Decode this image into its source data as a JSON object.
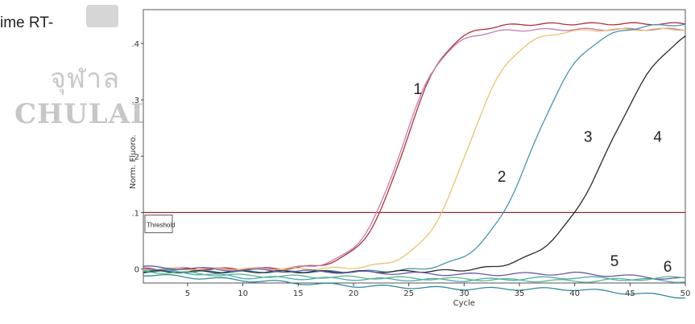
{
  "header": {
    "caption": "ime RT-",
    "watermark_thai": "จุฬาล",
    "watermark_latin": "CHULAL"
  },
  "chart_data": {
    "type": "line",
    "title": "",
    "xlabel": "Cycle",
    "ylabel": "Norm. Fluoro.",
    "xlim": [
      1,
      50
    ],
    "ylim": [
      -0.025,
      0.46
    ],
    "x_ticks": [
      5,
      10,
      15,
      20,
      25,
      30,
      35,
      40,
      45,
      50
    ],
    "y_ticks": [
      {
        "value": 0,
        "label": "0"
      },
      {
        "value": 0.1,
        "label": ".1"
      },
      {
        "value": 0.2,
        "label": ".2"
      },
      {
        "value": 0.3,
        "label": ".3"
      },
      {
        "value": 0.4,
        "label": ".4"
      }
    ],
    "threshold": {
      "value": 0.1,
      "label": "Threshold",
      "color": "#8b2a2a"
    },
    "grid": false,
    "series": [
      {
        "label": "1",
        "color": "#b0303a",
        "kind": "sigmoid",
        "baseline": 0.0,
        "plateau": 0.435,
        "midpoint": 24.6,
        "slope": 1.85
      },
      {
        "label": "1",
        "color": "#c57bb0",
        "kind": "sigmoid",
        "baseline": 0.0,
        "plateau": 0.425,
        "midpoint": 24.3,
        "slope": 1.85
      },
      {
        "label": "2",
        "color": "#e8c46e",
        "kind": "sigmoid",
        "baseline": 0.0,
        "plateau": 0.425,
        "midpoint": 30.3,
        "slope": 2.0
      },
      {
        "label": "3",
        "color": "#4a93b5",
        "kind": "sigmoid",
        "baseline": -0.005,
        "plateau": 0.435,
        "midpoint": 36.2,
        "slope": 2.3
      },
      {
        "label": "4",
        "color": "#2a2a2a",
        "kind": "sigmoid",
        "baseline": -0.005,
        "plateau": 0.445,
        "midpoint": 43.2,
        "slope": 2.7
      },
      {
        "label": "5",
        "color": "#4fa8b8",
        "kind": "flat",
        "y": [
          [
            1,
            0.0
          ],
          [
            10,
            -0.015
          ],
          [
            20,
            -0.018
          ],
          [
            30,
            -0.02
          ],
          [
            40,
            -0.015
          ],
          [
            50,
            -0.022
          ]
        ]
      },
      {
        "label": "5",
        "color": "#6a5aa8",
        "kind": "flat",
        "y": [
          [
            1,
            0.003
          ],
          [
            10,
            -0.002
          ],
          [
            20,
            -0.006
          ],
          [
            30,
            -0.01
          ],
          [
            40,
            -0.008
          ],
          [
            50,
            -0.018
          ]
        ]
      },
      {
        "label": "6",
        "color": "#5bb88a",
        "kind": "flat",
        "y": [
          [
            1,
            -0.004
          ],
          [
            10,
            -0.012
          ],
          [
            20,
            -0.015
          ],
          [
            30,
            -0.018
          ],
          [
            40,
            -0.022
          ],
          [
            50,
            -0.015
          ]
        ]
      },
      {
        "label": "6",
        "color": "#2f8c9a",
        "kind": "flat",
        "y": [
          [
            1,
            -0.01
          ],
          [
            10,
            -0.02
          ],
          [
            20,
            -0.03
          ],
          [
            30,
            -0.035
          ],
          [
            40,
            -0.036
          ],
          [
            50,
            -0.05
          ]
        ]
      }
    ],
    "curve_labels": [
      {
        "text": "1",
        "x": 25.8,
        "y": 0.31
      },
      {
        "text": "2",
        "x": 33.4,
        "y": 0.155
      },
      {
        "text": "3",
        "x": 41.2,
        "y": 0.225
      },
      {
        "text": "4",
        "x": 47.5,
        "y": 0.225
      },
      {
        "text": "5",
        "x": 43.6,
        "y": 0.005
      },
      {
        "text": "6",
        "x": 48.4,
        "y": -0.005
      }
    ]
  }
}
